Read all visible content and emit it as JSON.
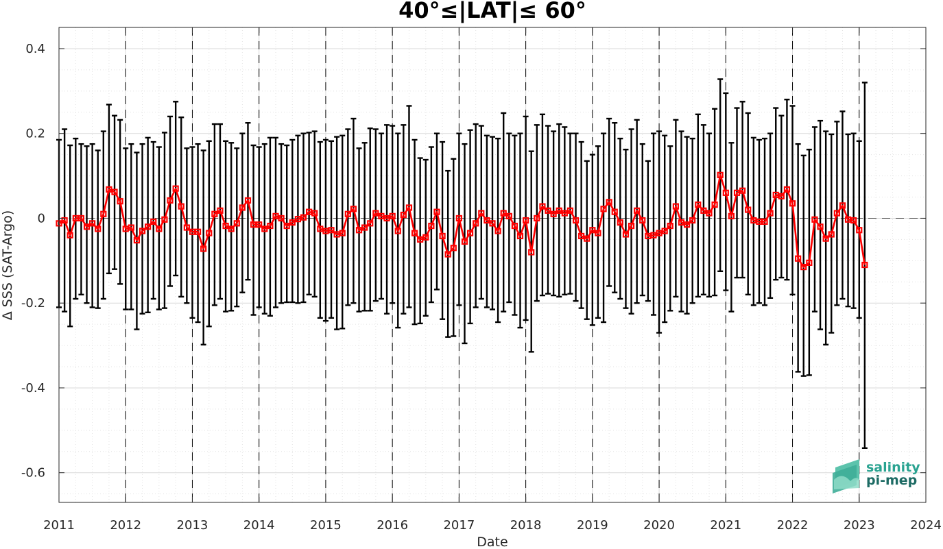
{
  "chart_data": {
    "type": "line",
    "title": "40°≤|LAT|≤ 60°",
    "xlabel": "Date",
    "ylabel": "Δ SSS (SAT-Argo)",
    "xlim": [
      2011,
      2024
    ],
    "ylim": [
      -0.67,
      0.45
    ],
    "xticks": [
      2011,
      2012,
      2013,
      2014,
      2015,
      2016,
      2017,
      2018,
      2019,
      2020,
      2021,
      2022,
      2023,
      2024
    ],
    "yticks": [
      -0.6,
      -0.4,
      -0.2,
      0,
      0.2,
      0.4
    ],
    "ytick_labels": [
      "-0.6",
      "-0.4",
      "-0.2",
      "0",
      "0.2",
      "0.4"
    ],
    "grid": true,
    "vertical_dashed_lines_at": [
      2012,
      2013,
      2014,
      2015,
      2016,
      2017,
      2018,
      2019,
      2020,
      2021,
      2022,
      2023
    ],
    "zero_line": "dashed",
    "series": [
      {
        "color": "#ff0000",
        "marker": "square",
        "errorbar_color": "#000000",
        "start": "2011-01",
        "step": "1 month",
        "values": [
          -0.012,
          -0.005,
          -0.04,
          0.0,
          0.0,
          -0.02,
          -0.012,
          -0.025,
          0.01,
          0.068,
          0.062,
          0.04,
          -0.025,
          -0.022,
          -0.052,
          -0.03,
          -0.02,
          -0.008,
          -0.025,
          -0.003,
          0.042,
          0.07,
          0.028,
          -0.022,
          -0.032,
          -0.032,
          -0.072,
          -0.035,
          0.01,
          0.018,
          -0.018,
          -0.025,
          -0.012,
          0.025,
          0.042,
          -0.015,
          -0.015,
          -0.025,
          -0.018,
          0.005,
          0.0,
          -0.018,
          -0.01,
          -0.002,
          0.002,
          0.015,
          0.012,
          -0.025,
          -0.03,
          -0.028,
          -0.038,
          -0.035,
          0.01,
          0.022,
          -0.028,
          -0.022,
          -0.012,
          0.012,
          0.005,
          0.0,
          0.005,
          -0.03,
          0.008,
          0.025,
          -0.035,
          -0.05,
          -0.045,
          -0.018,
          0.015,
          -0.042,
          -0.085,
          -0.07,
          0.0,
          -0.055,
          -0.035,
          -0.012,
          0.012,
          -0.005,
          -0.012,
          -0.03,
          0.012,
          0.005,
          -0.018,
          -0.042,
          -0.005,
          -0.08,
          0.0,
          0.028,
          0.018,
          0.01,
          0.018,
          0.012,
          0.018,
          -0.005,
          -0.042,
          -0.048,
          -0.028,
          -0.035,
          0.022,
          0.038,
          0.015,
          -0.01,
          -0.038,
          -0.018,
          0.018,
          -0.005,
          -0.042,
          -0.04,
          -0.035,
          -0.03,
          -0.018,
          0.028,
          -0.01,
          -0.015,
          -0.005,
          0.032,
          0.018,
          0.012,
          0.032,
          0.102,
          0.06,
          0.005,
          0.06,
          0.065,
          0.02,
          -0.005,
          -0.008,
          -0.008,
          0.012,
          0.055,
          0.052,
          0.068,
          0.035,
          -0.095,
          -0.115,
          -0.105,
          -0.003,
          -0.02,
          -0.048,
          -0.038,
          0.012,
          0.03,
          -0.003,
          -0.005,
          -0.028,
          -0.11
        ],
        "upper": [
          0.185,
          0.21,
          0.172,
          0.188,
          0.175,
          0.17,
          0.175,
          0.16,
          0.205,
          0.268,
          0.242,
          0.232,
          0.165,
          0.175,
          0.155,
          0.175,
          0.19,
          0.18,
          0.168,
          0.202,
          0.24,
          0.275,
          0.238,
          0.165,
          0.168,
          0.175,
          0.16,
          0.182,
          0.222,
          0.222,
          0.182,
          0.178,
          0.165,
          0.2,
          0.225,
          0.172,
          0.168,
          0.175,
          0.19,
          0.19,
          0.175,
          0.172,
          0.185,
          0.195,
          0.2,
          0.202,
          0.205,
          0.18,
          0.185,
          0.182,
          0.192,
          0.195,
          0.21,
          0.235,
          0.165,
          0.178,
          0.212,
          0.21,
          0.2,
          0.22,
          0.218,
          0.2,
          0.22,
          0.265,
          0.185,
          0.142,
          0.138,
          0.168,
          0.2,
          0.18,
          0.112,
          0.14,
          0.2,
          0.175,
          0.208,
          0.222,
          0.218,
          0.195,
          0.192,
          0.188,
          0.248,
          0.2,
          0.195,
          0.2,
          0.24,
          0.158,
          0.22,
          0.245,
          0.218,
          0.205,
          0.222,
          0.215,
          0.2,
          0.2,
          0.18,
          0.135,
          0.15,
          0.17,
          0.2,
          0.235,
          0.225,
          0.188,
          0.162,
          0.21,
          0.232,
          0.175,
          0.135,
          0.2,
          0.205,
          0.195,
          0.17,
          0.232,
          0.205,
          0.192,
          0.188,
          0.245,
          0.22,
          0.2,
          0.258,
          0.328,
          0.295,
          0.178,
          0.26,
          0.275,
          0.248,
          0.19,
          0.185,
          0.188,
          0.2,
          0.26,
          0.242,
          0.28,
          0.265,
          0.175,
          0.148,
          0.162,
          0.215,
          0.23,
          0.205,
          0.198,
          0.228,
          0.252,
          0.198,
          0.2,
          0.182,
          0.32
        ],
        "lower": [
          -0.21,
          -0.22,
          -0.255,
          -0.19,
          -0.18,
          -0.2,
          -0.21,
          -0.212,
          -0.19,
          -0.13,
          -0.12,
          -0.155,
          -0.215,
          -0.215,
          -0.262,
          -0.225,
          -0.222,
          -0.19,
          -0.215,
          -0.212,
          -0.16,
          -0.135,
          -0.185,
          -0.2,
          -0.235,
          -0.245,
          -0.298,
          -0.255,
          -0.205,
          -0.19,
          -0.22,
          -0.218,
          -0.208,
          -0.175,
          -0.145,
          -0.228,
          -0.21,
          -0.225,
          -0.23,
          -0.21,
          -0.2,
          -0.198,
          -0.198,
          -0.2,
          -0.198,
          -0.18,
          -0.185,
          -0.235,
          -0.242,
          -0.235,
          -0.262,
          -0.26,
          -0.205,
          -0.2,
          -0.22,
          -0.218,
          -0.218,
          -0.195,
          -0.19,
          -0.225,
          -0.2,
          -0.258,
          -0.225,
          -0.21,
          -0.25,
          -0.248,
          -0.23,
          -0.198,
          -0.168,
          -0.238,
          -0.28,
          -0.278,
          -0.205,
          -0.295,
          -0.248,
          -0.21,
          -0.19,
          -0.21,
          -0.215,
          -0.245,
          -0.22,
          -0.198,
          -0.228,
          -0.258,
          -0.24,
          -0.315,
          -0.195,
          -0.182,
          -0.178,
          -0.182,
          -0.185,
          -0.18,
          -0.178,
          -0.195,
          -0.212,
          -0.238,
          -0.252,
          -0.235,
          -0.245,
          -0.16,
          -0.175,
          -0.19,
          -0.212,
          -0.225,
          -0.2,
          -0.182,
          -0.195,
          -0.228,
          -0.27,
          -0.245,
          -0.218,
          -0.185,
          -0.22,
          -0.225,
          -0.2,
          -0.185,
          -0.18,
          -0.185,
          -0.182,
          -0.125,
          -0.17,
          -0.22,
          -0.14,
          -0.14,
          -0.18,
          -0.205,
          -0.2,
          -0.205,
          -0.188,
          -0.145,
          -0.14,
          -0.145,
          -0.18,
          -0.362,
          -0.372,
          -0.37,
          -0.22,
          -0.262,
          -0.298,
          -0.27,
          -0.205,
          -0.19,
          -0.208,
          -0.212,
          -0.235,
          -0.542
        ]
      }
    ]
  },
  "logo": {
    "line1": "salinity",
    "line2": "pi-mep",
    "color1": "#2aa391",
    "color2": "#1d6b64"
  }
}
